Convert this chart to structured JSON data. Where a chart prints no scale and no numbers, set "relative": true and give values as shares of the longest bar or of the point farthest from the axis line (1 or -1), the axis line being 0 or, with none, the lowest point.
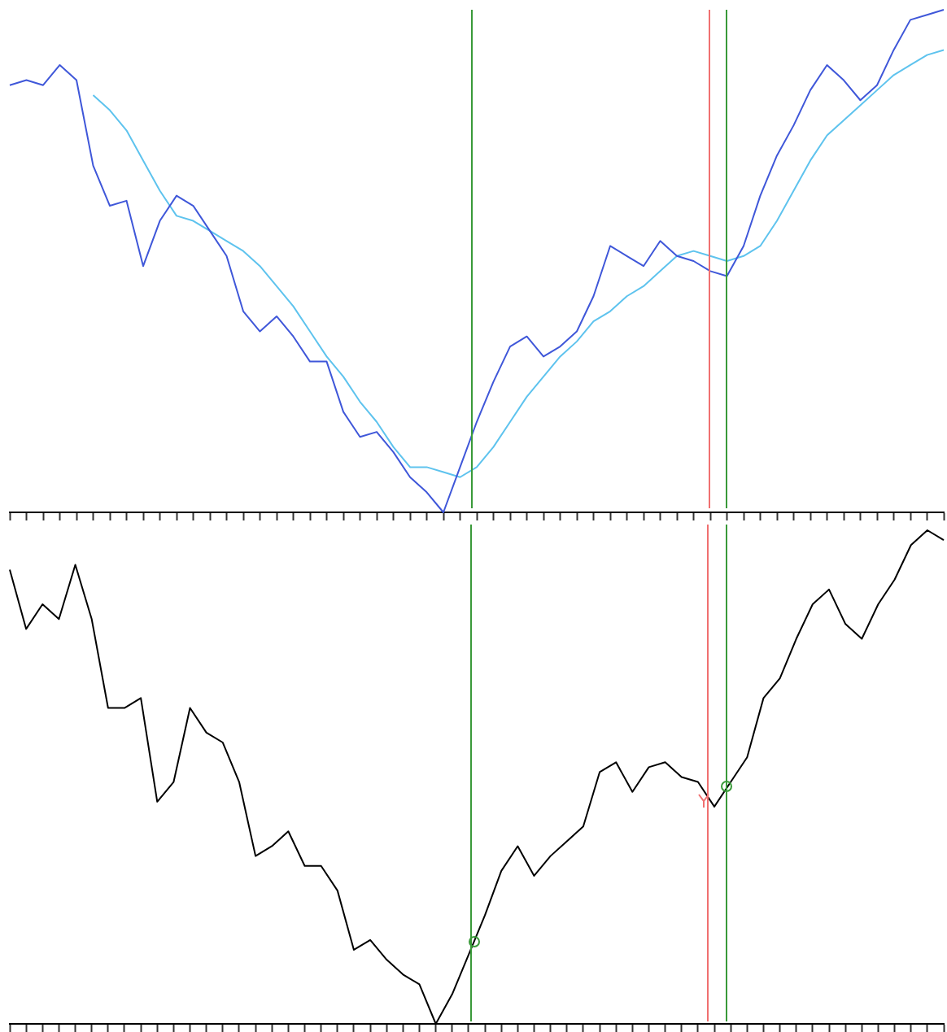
{
  "chart_data": [
    {
      "type": "line",
      "relative": true,
      "categories": [
        null,
        null,
        null,
        null,
        null,
        null,
        null,
        null,
        null,
        null,
        null,
        null,
        null,
        null,
        null,
        null,
        null,
        null,
        null,
        null,
        null,
        null,
        null,
        null,
        null,
        null,
        null,
        null,
        null,
        null,
        null,
        null,
        null,
        null,
        null,
        null,
        null,
        null,
        null,
        null,
        null,
        null,
        null,
        null,
        null,
        null,
        null,
        null,
        null,
        null,
        null,
        null,
        null,
        null,
        null,
        null,
        null
      ],
      "series": [
        {
          "color": "#3f57d9",
          "values": [
            0.85,
            0.86,
            0.85,
            0.89,
            0.86,
            0.69,
            0.61,
            0.62,
            0.49,
            0.58,
            0.63,
            0.61,
            0.56,
            0.51,
            0.4,
            0.36,
            0.39,
            0.35,
            0.3,
            0.3,
            0.2,
            0.15,
            0.16,
            0.12,
            0.07,
            0.04,
            0.0,
            0.09,
            0.18,
            0.26,
            0.33,
            0.35,
            0.31,
            0.33,
            0.36,
            0.43,
            0.53,
            0.51,
            0.49,
            0.54,
            0.51,
            0.5,
            0.48,
            0.47,
            0.53,
            0.63,
            0.71,
            0.77,
            0.84,
            0.89,
            0.86,
            0.82,
            0.85,
            0.92,
            0.98,
            0.99,
            1
          ]
        },
        {
          "color": "#5ec3ee",
          "values": [
            null,
            null,
            null,
            null,
            null,
            0.83,
            0.8,
            0.76,
            0.7,
            0.64,
            0.59,
            0.58,
            0.56,
            0.54,
            0.52,
            0.49,
            0.45,
            0.41,
            0.36,
            0.31,
            0.27,
            0.22,
            0.18,
            0.13,
            0.09,
            0.09,
            0.08,
            0.07,
            0.09,
            0.13,
            0.18,
            0.23,
            0.27,
            0.31,
            0.34,
            0.38,
            0.4,
            0.43,
            0.45,
            0.48,
            0.51,
            0.52,
            0.51,
            0.5,
            0.51,
            0.53,
            0.58,
            0.64,
            0.7,
            0.75,
            0.78,
            0.81,
            0.84,
            0.87,
            0.89,
            0.91,
            0.92
          ]
        }
      ],
      "grid": false,
      "legend": false,
      "tick_labels": false,
      "marker": "none",
      "line_style": "solid"
    },
    {
      "type": "line",
      "relative": true,
      "categories": [
        null,
        null,
        null,
        null,
        null,
        null,
        null,
        null,
        null,
        null,
        null,
        null,
        null,
        null,
        null,
        null,
        null,
        null,
        null,
        null,
        null,
        null,
        null,
        null,
        null,
        null,
        null,
        null,
        null,
        null,
        null,
        null,
        null,
        null,
        null,
        null,
        null,
        null,
        null,
        null,
        null,
        null,
        null,
        null,
        null,
        null,
        null,
        null,
        null,
        null,
        null,
        null,
        null,
        null,
        null,
        null,
        null,
        null
      ],
      "series": [
        {
          "color": "#000000",
          "values": [
            0.92,
            0.8,
            0.85,
            0.82,
            0.93,
            0.82,
            0.64,
            0.64,
            0.66,
            0.45,
            0.49,
            0.64,
            0.59,
            0.57,
            0.49,
            0.34,
            0.36,
            0.39,
            0.32,
            0.32,
            0.27,
            0.15,
            0.17,
            0.13,
            0.1,
            0.08,
            0,
            0.06,
            0.14,
            0.22,
            0.31,
            0.36,
            0.3,
            0.34,
            0.37,
            0.4,
            0.51,
            0.53,
            0.47,
            0.52,
            0.53,
            0.5,
            0.49,
            0.44,
            0.49,
            0.54,
            0.66,
            0.7,
            0.78,
            0.85,
            0.88,
            0.81,
            0.78,
            0.85,
            0.9,
            0.97,
            1,
            0.98
          ]
        }
      ],
      "grid": false,
      "legend": false,
      "tick_labels": false,
      "marker": "none",
      "line_style": "solid"
    }
  ]
}
